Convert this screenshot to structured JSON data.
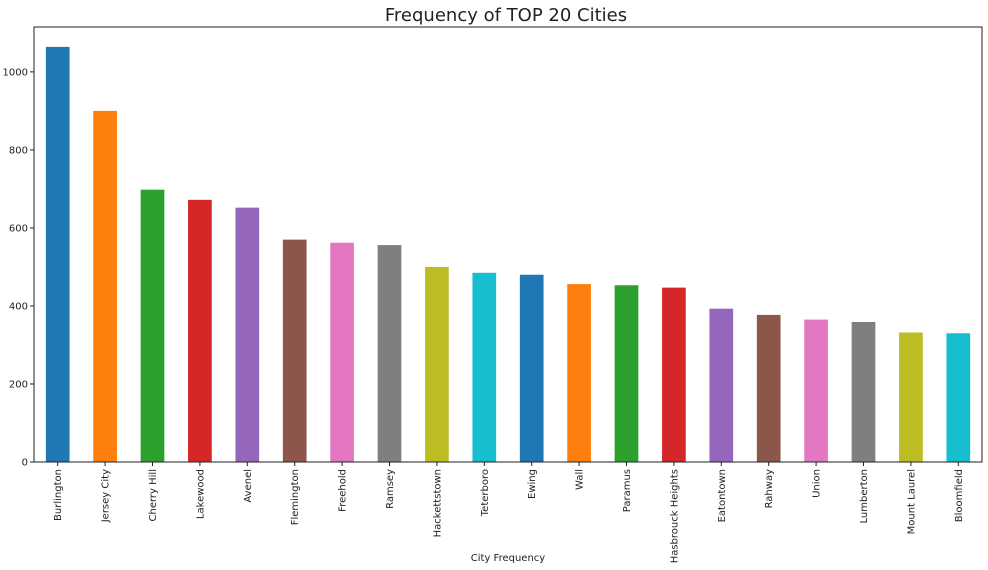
{
  "chart_data": {
    "type": "bar",
    "title": "Frequency of TOP 20 Cities",
    "xlabel": "City Frequency",
    "ylabel": "",
    "ylim": [
      0,
      1115
    ],
    "yticks": [
      0,
      200,
      400,
      600,
      800,
      1000
    ],
    "grid": false,
    "categories": [
      "Burlington",
      "Jersey City",
      "Cherry Hill",
      "Lakewood",
      "Avenel",
      "Flemington",
      "Freehold",
      "Ramsey",
      "Hackettstown",
      "Teterboro",
      "Ewing",
      "Wall",
      "Paramus",
      "Hasbrouck Heights",
      "Eatontown",
      "Rahway",
      "Union",
      "Lumberton",
      "Mount Laurel",
      "Bloomfield"
    ],
    "values": [
      1064,
      900,
      698,
      672,
      652,
      570,
      562,
      556,
      500,
      485,
      480,
      456,
      453,
      447,
      393,
      377,
      365,
      359,
      332,
      330
    ],
    "colors": [
      "#1f77b4",
      "#ff7f0e",
      "#2ca02c",
      "#d62728",
      "#9467bd",
      "#8c564b",
      "#e377c2",
      "#7f7f7f",
      "#bcbd22",
      "#17becf",
      "#1f77b4",
      "#ff7f0e",
      "#2ca02c",
      "#d62728",
      "#9467bd",
      "#8c564b",
      "#e377c2",
      "#7f7f7f",
      "#bcbd22",
      "#17becf"
    ]
  }
}
